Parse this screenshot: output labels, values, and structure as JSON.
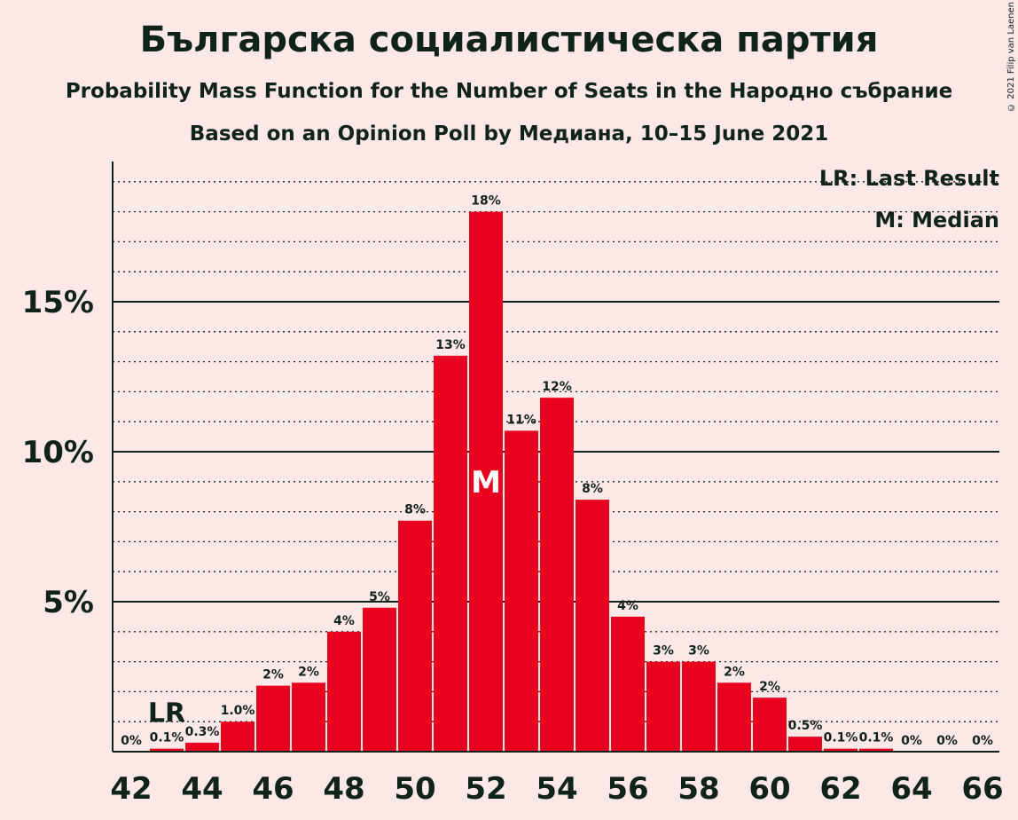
{
  "title": "Българска социалистическа партия",
  "subtitle": "Probability Mass Function for the Number of Seats in the Народно събрание",
  "subtitle2": "Based on an Opinion Poll by Медиана, 10–15 June 2021",
  "copyright": "© 2021 Filip van Laenen",
  "legend": {
    "lr": "LR: Last Result",
    "m": "M: Median"
  },
  "colors": {
    "bar": "#e8001e",
    "background": "#fde8e8",
    "text": "#10231a"
  },
  "chart_data": {
    "type": "bar",
    "x": [
      42,
      43,
      44,
      45,
      46,
      47,
      48,
      49,
      50,
      51,
      52,
      53,
      54,
      55,
      56,
      57,
      58,
      59,
      60,
      61,
      62,
      63,
      64,
      65,
      66
    ],
    "values": [
      0,
      0.1,
      0.3,
      1.0,
      2.2,
      2.3,
      4.0,
      4.8,
      7.7,
      13.2,
      18.0,
      10.7,
      11.8,
      8.4,
      4.5,
      3.0,
      3.0,
      2.3,
      1.8,
      0.5,
      0.1,
      0.1,
      0,
      0,
      0
    ],
    "labels": [
      "0%",
      "0.1%",
      "0.3%",
      "1.0%",
      "2%",
      "2%",
      "4%",
      "5%",
      "8%",
      "13%",
      "18%",
      "11%",
      "12%",
      "8%",
      "4%",
      "3%",
      "3%",
      "2%",
      "2%",
      "0.5%",
      "0.1%",
      "0.1%",
      "0%",
      "0%",
      "0%"
    ],
    "x_ticks": [
      "42",
      "44",
      "46",
      "48",
      "50",
      "52",
      "54",
      "56",
      "58",
      "60",
      "62",
      "64",
      "66"
    ],
    "y_ticks": [
      {
        "value": 5,
        "label": "5%"
      },
      {
        "value": 10,
        "label": "10%"
      },
      {
        "value": 15,
        "label": "15%"
      }
    ],
    "ylim": [
      0,
      19.7
    ],
    "last_result_seat": 43,
    "last_result_label": "LR",
    "median_seat": 52,
    "median_label": "M"
  }
}
